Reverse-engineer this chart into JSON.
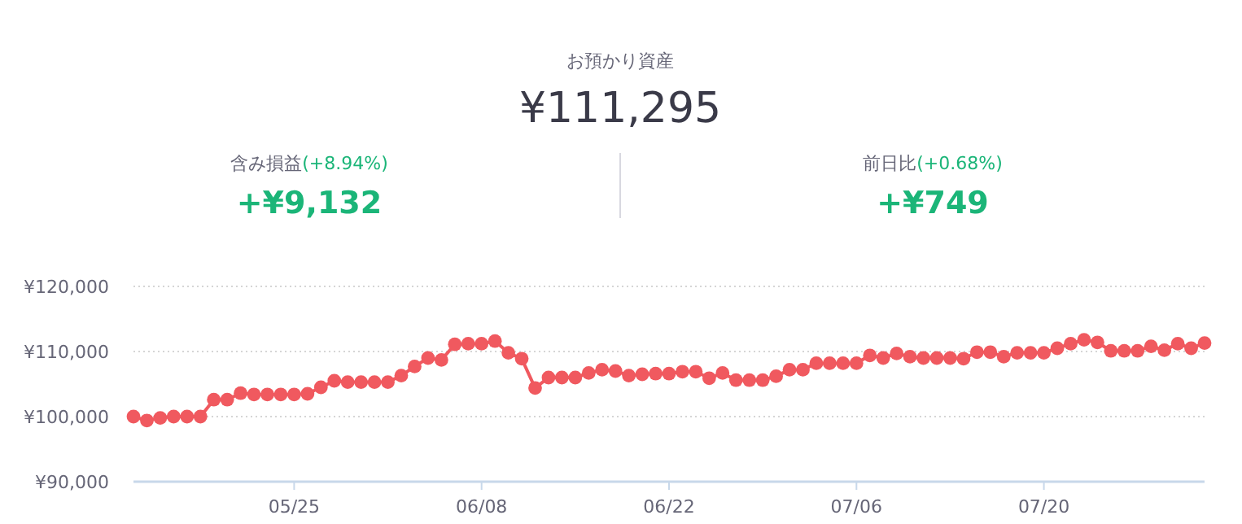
{
  "chart_data": {
    "type": "line",
    "title": "お預かり資産",
    "subtitle": "¥111,295",
    "annotations": [
      "含み損益",
      "(+8.94%)",
      "+¥9,132",
      "前日比",
      "(+0.68%)",
      "+¥749"
    ],
    "x": [
      "--05-13",
      "--05-14",
      "--05-15",
      "--05-16",
      "--05-17",
      "--05-18",
      "--05-19",
      "--05-20",
      "--05-21",
      "--05-22",
      "--05-23",
      "--05-24",
      "--05-25",
      "--05-26",
      "--05-27",
      "--05-28",
      "--05-29",
      "--05-30",
      "--05-31",
      "--06-01",
      "--06-02",
      "--06-03",
      "--06-04",
      "--06-05",
      "--06-06",
      "--06-07",
      "--06-08",
      "--06-09",
      "--06-10",
      "--06-11",
      "--06-12",
      "--06-13",
      "--06-14",
      "--06-15",
      "--06-16",
      "--06-17",
      "--06-18",
      "--06-19",
      "--06-20",
      "--06-21",
      "--06-22",
      "--06-23",
      "--06-24",
      "--06-25",
      "--06-26",
      "--06-27",
      "--06-28",
      "--06-29",
      "--06-30",
      "--07-01",
      "--07-02",
      "--07-03",
      "--07-04",
      "--07-05",
      "--07-06",
      "--07-07",
      "--07-08",
      "--07-09",
      "--07-10",
      "--07-11",
      "--07-12",
      "--07-13",
      "--07-14",
      "--07-15",
      "--07-16",
      "--07-17",
      "--07-18",
      "--07-19",
      "--07-20",
      "--07-21",
      "--07-22",
      "--07-23",
      "--07-24",
      "--07-25",
      "--07-26",
      "--07-27",
      "--07-28",
      "--07-29",
      "--07-30",
      "--07-31",
      "--08-01"
    ],
    "series": [
      {
        "color": "#f0595f",
        "values": [
          100000,
          99400,
          99800,
          100000,
          100000,
          100000,
          102600,
          102600,
          103600,
          103400,
          103400,
          103400,
          103400,
          103500,
          104500,
          105500,
          105300,
          105300,
          105300,
          105300,
          106300,
          107700,
          109000,
          108700,
          111100,
          111200,
          111200,
          111600,
          109800,
          108900,
          104400,
          106000,
          106000,
          106000,
          106700,
          107200,
          107000,
          106300,
          106500,
          106600,
          106600,
          106900,
          106900,
          105900,
          106700,
          105600,
          105600,
          105600,
          106200,
          107200,
          107200,
          108200,
          108200,
          108200,
          108200,
          109400,
          109000,
          109700,
          109200,
          109000,
          109000,
          109000,
          108900,
          109900,
          109900,
          109200,
          109800,
          109800,
          109800,
          110500,
          111200,
          111800,
          111400,
          110100,
          110100,
          110100,
          110800,
          110200,
          111200,
          110500,
          111300
        ]
      }
    ],
    "xlim": [
      "--05-13",
      "--08-01"
    ],
    "xticks": [
      {
        "value": "--05-25",
        "label": "05/25"
      },
      {
        "value": "--06-08",
        "label": "06/08"
      },
      {
        "value": "--06-22",
        "label": "06/22"
      },
      {
        "value": "--07-06",
        "label": "07/06"
      },
      {
        "value": "--07-20",
        "label": "07/20"
      }
    ],
    "ylim": [
      90000,
      120000
    ],
    "yticks": [
      {
        "value": 90000,
        "label": "¥90,000"
      },
      {
        "value": 100000,
        "label": "¥100,000"
      },
      {
        "value": 110000,
        "label": "¥110,000"
      },
      {
        "value": 120000,
        "label": "¥120,000"
      }
    ],
    "grid": "y",
    "marker": "circle",
    "line_style": "solid"
  }
}
